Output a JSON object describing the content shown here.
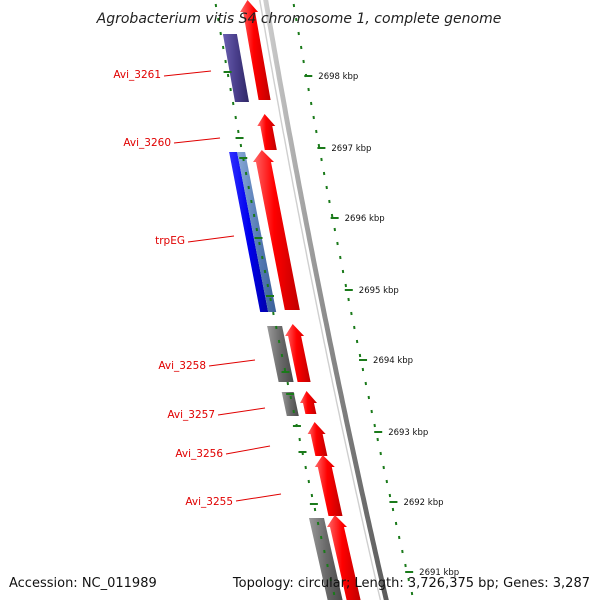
{
  "title": "Agrobacterium vitis S4 chromosome 1, complete genome",
  "footer": {
    "accession": "Accession: NC_011989",
    "topology": "Topology: circular; Length: 3,726,375 bp; Genes: 3,287"
  },
  "colors": {
    "backbone": "#8c8c8c",
    "forward_gene": "#ff0000",
    "tick_green": "#1a7a1a",
    "label_red": "#e00000",
    "gray_feature": "#707070",
    "purple_feature": "#4a3f8c",
    "blue_feature": "#0000ee",
    "steel_feature": "#5a7fb8"
  },
  "scale_ticks": [
    {
      "label": "2698 kbp",
      "position_kbp": 2698
    },
    {
      "label": "2697 kbp",
      "position_kbp": 2697
    },
    {
      "label": "2696 kbp",
      "position_kbp": 2696
    },
    {
      "label": "2695 kbp",
      "position_kbp": 2695
    },
    {
      "label": "2694 kbp",
      "position_kbp": 2694
    },
    {
      "label": "2693 kbp",
      "position_kbp": 2693
    },
    {
      "label": "2692 kbp",
      "position_kbp": 2692
    },
    {
      "label": "2691 kbp",
      "position_kbp": 2691
    }
  ],
  "gene_labels": [
    {
      "name": "Avi_3261"
    },
    {
      "name": "Avi_3260"
    },
    {
      "name": "trpEG"
    },
    {
      "name": "Avi_3258"
    },
    {
      "name": "Avi_3257"
    },
    {
      "name": "Avi_3256"
    },
    {
      "name": "Avi_3255"
    }
  ]
}
